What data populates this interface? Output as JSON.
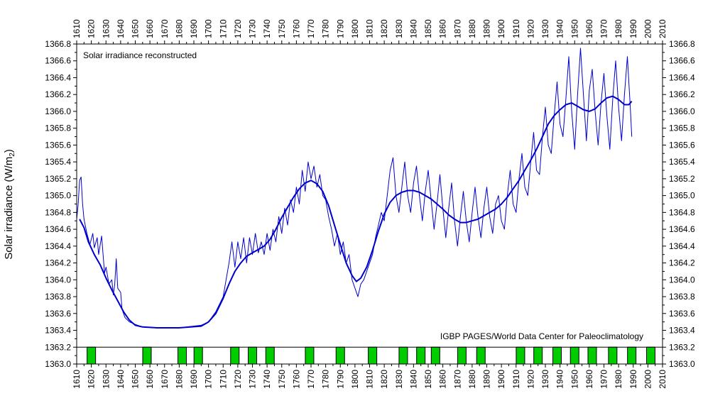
{
  "chart_data": {
    "type": "line",
    "title": "Solar irradiance reconstructed",
    "ylabel_main": "Solar irradiance (W/m",
    "ylabel_sub": "2",
    "ylabel_tail": ")",
    "annotation": "IGBP PAGES/World Data Center for Paleoclimatology",
    "xlim": [
      1610,
      2010
    ],
    "ylim": [
      1363.0,
      1366.8
    ],
    "x_ticks": [
      "1610",
      "1620",
      "1630",
      "1640",
      "1650",
      "1660",
      "1670",
      "1680",
      "1690",
      "1700",
      "1710",
      "1720",
      "1730",
      "1740",
      "1750",
      "1760",
      "1770",
      "1780",
      "1790",
      "1800",
      "1810",
      "1820",
      "1830",
      "1840",
      "1850",
      "1860",
      "1870",
      "1880",
      "1890",
      "1900",
      "1910",
      "1920",
      "1930",
      "1940",
      "1950",
      "1960",
      "1970",
      "1980",
      "1990",
      "2000",
      "2010"
    ],
    "y_ticks": [
      "1363.0",
      "1363.2",
      "1363.4",
      "1363.6",
      "1363.8",
      "1364.0",
      "1364.2",
      "1364.4",
      "1364.6",
      "1364.8",
      "1365.0",
      "1365.2",
      "1365.4",
      "1365.6",
      "1365.8",
      "1366.0",
      "1366.2",
      "1366.4",
      "1366.6",
      "1366.8"
    ],
    "grid": false,
    "series": [
      {
        "style": "thin",
        "color": "#0000cc",
        "points": [
          [
            1610,
            1364.72
          ],
          [
            1611,
            1364.9
          ],
          [
            1612,
            1365.18
          ],
          [
            1613,
            1365.22
          ],
          [
            1614,
            1364.9
          ],
          [
            1615,
            1364.72
          ],
          [
            1617,
            1364.55
          ],
          [
            1619,
            1364.42
          ],
          [
            1621,
            1364.55
          ],
          [
            1622,
            1364.38
          ],
          [
            1624,
            1364.5
          ],
          [
            1625,
            1364.3
          ],
          [
            1627,
            1364.52
          ],
          [
            1629,
            1364.08
          ],
          [
            1630,
            1364.15
          ],
          [
            1632,
            1363.95
          ],
          [
            1634,
            1364.0
          ],
          [
            1635,
            1363.82
          ],
          [
            1636,
            1363.95
          ],
          [
            1637,
            1364.25
          ],
          [
            1638,
            1363.9
          ],
          [
            1640,
            1363.85
          ],
          [
            1641,
            1363.65
          ],
          [
            1643,
            1363.55
          ],
          [
            1646,
            1363.5
          ],
          [
            1650,
            1363.47
          ],
          [
            1655,
            1363.44
          ],
          [
            1665,
            1363.43
          ],
          [
            1680,
            1363.43
          ],
          [
            1695,
            1363.46
          ],
          [
            1700,
            1363.5
          ],
          [
            1705,
            1363.62
          ],
          [
            1710,
            1363.8
          ],
          [
            1712,
            1364.0
          ],
          [
            1714,
            1364.2
          ],
          [
            1716,
            1364.45
          ],
          [
            1718,
            1364.15
          ],
          [
            1720,
            1364.45
          ],
          [
            1722,
            1364.25
          ],
          [
            1724,
            1364.5
          ],
          [
            1726,
            1364.2
          ],
          [
            1728,
            1364.5
          ],
          [
            1730,
            1364.3
          ],
          [
            1732,
            1364.55
          ],
          [
            1734,
            1364.32
          ],
          [
            1736,
            1364.45
          ],
          [
            1738,
            1364.3
          ],
          [
            1740,
            1364.55
          ],
          [
            1742,
            1364.35
          ],
          [
            1744,
            1364.6
          ],
          [
            1746,
            1364.45
          ],
          [
            1748,
            1364.75
          ],
          [
            1750,
            1364.55
          ],
          [
            1752,
            1364.85
          ],
          [
            1754,
            1364.65
          ],
          [
            1756,
            1364.95
          ],
          [
            1758,
            1364.8
          ],
          [
            1760,
            1365.1
          ],
          [
            1762,
            1364.9
          ],
          [
            1764,
            1365.3
          ],
          [
            1766,
            1365.05
          ],
          [
            1768,
            1365.4
          ],
          [
            1770,
            1365.2
          ],
          [
            1772,
            1365.35
          ],
          [
            1774,
            1365.1
          ],
          [
            1776,
            1365.25
          ],
          [
            1778,
            1365.0
          ],
          [
            1780,
            1364.95
          ],
          [
            1782,
            1364.75
          ],
          [
            1784,
            1364.6
          ],
          [
            1786,
            1364.4
          ],
          [
            1788,
            1364.55
          ],
          [
            1790,
            1364.3
          ],
          [
            1792,
            1364.45
          ],
          [
            1794,
            1364.2
          ],
          [
            1796,
            1364.3
          ],
          [
            1798,
            1364.0
          ],
          [
            1800,
            1363.9
          ],
          [
            1802,
            1363.8
          ],
          [
            1804,
            1363.95
          ],
          [
            1806,
            1364.0
          ],
          [
            1808,
            1364.1
          ],
          [
            1810,
            1364.2
          ],
          [
            1812,
            1364.3
          ],
          [
            1814,
            1364.5
          ],
          [
            1816,
            1364.65
          ],
          [
            1818,
            1364.8
          ],
          [
            1820,
            1364.7
          ],
          [
            1822,
            1365.0
          ],
          [
            1824,
            1365.3
          ],
          [
            1826,
            1365.45
          ],
          [
            1828,
            1365.0
          ],
          [
            1830,
            1364.8
          ],
          [
            1832,
            1365.1
          ],
          [
            1834,
            1365.4
          ],
          [
            1836,
            1365.0
          ],
          [
            1838,
            1364.8
          ],
          [
            1840,
            1365.15
          ],
          [
            1842,
            1365.35
          ],
          [
            1844,
            1365.0
          ],
          [
            1846,
            1364.7
          ],
          [
            1848,
            1365.05
          ],
          [
            1850,
            1365.3
          ],
          [
            1852,
            1364.95
          ],
          [
            1854,
            1364.6
          ],
          [
            1856,
            1364.9
          ],
          [
            1858,
            1365.25
          ],
          [
            1860,
            1364.85
          ],
          [
            1862,
            1364.5
          ],
          [
            1864,
            1364.85
          ],
          [
            1866,
            1365.15
          ],
          [
            1868,
            1364.7
          ],
          [
            1870,
            1364.4
          ],
          [
            1872,
            1364.75
          ],
          [
            1874,
            1365.05
          ],
          [
            1876,
            1364.7
          ],
          [
            1878,
            1364.45
          ],
          [
            1880,
            1364.8
          ],
          [
            1882,
            1365.1
          ],
          [
            1884,
            1364.75
          ],
          [
            1886,
            1364.5
          ],
          [
            1888,
            1364.85
          ],
          [
            1890,
            1365.1
          ],
          [
            1892,
            1364.75
          ],
          [
            1894,
            1364.55
          ],
          [
            1896,
            1364.9
          ],
          [
            1898,
            1365.0
          ],
          [
            1900,
            1364.7
          ],
          [
            1902,
            1364.6
          ],
          [
            1904,
            1365.0
          ],
          [
            1906,
            1365.3
          ],
          [
            1908,
            1364.9
          ],
          [
            1910,
            1364.8
          ],
          [
            1912,
            1365.2
          ],
          [
            1914,
            1365.5
          ],
          [
            1916,
            1365.1
          ],
          [
            1918,
            1365.0
          ],
          [
            1920,
            1365.4
          ],
          [
            1922,
            1365.75
          ],
          [
            1924,
            1365.3
          ],
          [
            1926,
            1365.25
          ],
          [
            1928,
            1365.7
          ],
          [
            1930,
            1366.05
          ],
          [
            1932,
            1365.6
          ],
          [
            1934,
            1365.5
          ],
          [
            1936,
            1365.95
          ],
          [
            1938,
            1366.35
          ],
          [
            1940,
            1365.85
          ],
          [
            1942,
            1365.7
          ],
          [
            1944,
            1366.15
          ],
          [
            1946,
            1366.65
          ],
          [
            1948,
            1366.0
          ],
          [
            1950,
            1365.55
          ],
          [
            1952,
            1366.2
          ],
          [
            1954,
            1366.75
          ],
          [
            1956,
            1366.2
          ],
          [
            1958,
            1365.65
          ],
          [
            1960,
            1366.25
          ],
          [
            1962,
            1366.5
          ],
          [
            1964,
            1366.0
          ],
          [
            1966,
            1365.6
          ],
          [
            1968,
            1366.1
          ],
          [
            1970,
            1366.45
          ],
          [
            1972,
            1365.95
          ],
          [
            1974,
            1365.55
          ],
          [
            1976,
            1366.15
          ],
          [
            1978,
            1366.6
          ],
          [
            1980,
            1366.05
          ],
          [
            1982,
            1365.65
          ],
          [
            1984,
            1366.2
          ],
          [
            1986,
            1366.65
          ],
          [
            1988,
            1366.05
          ],
          [
            1989,
            1365.7
          ]
        ]
      },
      {
        "style": "thick",
        "color": "#0000cc",
        "points": [
          [
            1612,
            1364.72
          ],
          [
            1615,
            1364.62
          ],
          [
            1618,
            1364.45
          ],
          [
            1622,
            1364.3
          ],
          [
            1626,
            1364.18
          ],
          [
            1630,
            1364.02
          ],
          [
            1634,
            1363.88
          ],
          [
            1638,
            1363.75
          ],
          [
            1642,
            1363.62
          ],
          [
            1646,
            1363.52
          ],
          [
            1650,
            1363.46
          ],
          [
            1655,
            1363.44
          ],
          [
            1665,
            1363.43
          ],
          [
            1680,
            1363.43
          ],
          [
            1695,
            1363.45
          ],
          [
            1700,
            1363.5
          ],
          [
            1705,
            1363.6
          ],
          [
            1710,
            1363.78
          ],
          [
            1714,
            1363.95
          ],
          [
            1718,
            1364.1
          ],
          [
            1722,
            1364.2
          ],
          [
            1726,
            1364.28
          ],
          [
            1730,
            1364.32
          ],
          [
            1734,
            1364.36
          ],
          [
            1738,
            1364.4
          ],
          [
            1742,
            1364.48
          ],
          [
            1746,
            1364.6
          ],
          [
            1750,
            1364.74
          ],
          [
            1754,
            1364.86
          ],
          [
            1758,
            1364.98
          ],
          [
            1762,
            1365.08
          ],
          [
            1766,
            1365.15
          ],
          [
            1770,
            1365.18
          ],
          [
            1774,
            1365.14
          ],
          [
            1778,
            1365.05
          ],
          [
            1782,
            1364.88
          ],
          [
            1786,
            1364.65
          ],
          [
            1790,
            1364.42
          ],
          [
            1794,
            1364.2
          ],
          [
            1798,
            1364.05
          ],
          [
            1801,
            1363.98
          ],
          [
            1804,
            1364.02
          ],
          [
            1808,
            1364.15
          ],
          [
            1812,
            1364.35
          ],
          [
            1816,
            1364.58
          ],
          [
            1820,
            1364.78
          ],
          [
            1824,
            1364.92
          ],
          [
            1828,
            1365.0
          ],
          [
            1832,
            1365.04
          ],
          [
            1836,
            1365.06
          ],
          [
            1840,
            1365.06
          ],
          [
            1844,
            1365.04
          ],
          [
            1848,
            1365.0
          ],
          [
            1852,
            1364.96
          ],
          [
            1856,
            1364.9
          ],
          [
            1860,
            1364.84
          ],
          [
            1864,
            1364.77
          ],
          [
            1868,
            1364.72
          ],
          [
            1872,
            1364.68
          ],
          [
            1876,
            1364.68
          ],
          [
            1880,
            1364.7
          ],
          [
            1884,
            1364.72
          ],
          [
            1888,
            1364.76
          ],
          [
            1892,
            1364.8
          ],
          [
            1896,
            1364.84
          ],
          [
            1900,
            1364.9
          ],
          [
            1904,
            1364.98
          ],
          [
            1908,
            1365.08
          ],
          [
            1912,
            1365.18
          ],
          [
            1916,
            1365.3
          ],
          [
            1920,
            1365.42
          ],
          [
            1924,
            1365.55
          ],
          [
            1928,
            1365.7
          ],
          [
            1932,
            1365.85
          ],
          [
            1936,
            1365.95
          ],
          [
            1940,
            1366.02
          ],
          [
            1944,
            1366.08
          ],
          [
            1948,
            1366.1
          ],
          [
            1952,
            1366.06
          ],
          [
            1956,
            1366.02
          ],
          [
            1960,
            1366.0
          ],
          [
            1964,
            1366.03
          ],
          [
            1968,
            1366.1
          ],
          [
            1972,
            1366.16
          ],
          [
            1976,
            1366.18
          ],
          [
            1980,
            1366.14
          ],
          [
            1984,
            1366.08
          ],
          [
            1987,
            1366.08
          ],
          [
            1989,
            1366.12
          ]
        ]
      }
    ],
    "markers_band": {
      "y_range": [
        1363.0,
        1363.2
      ],
      "color": "#00cc00",
      "x": [
        1620,
        1658,
        1682,
        1693,
        1718,
        1730,
        1742,
        1769,
        1790,
        1812,
        1833,
        1845,
        1855,
        1873,
        1886,
        1913,
        1925,
        1938,
        1950,
        1962,
        1976,
        1989,
        2002
      ]
    }
  }
}
